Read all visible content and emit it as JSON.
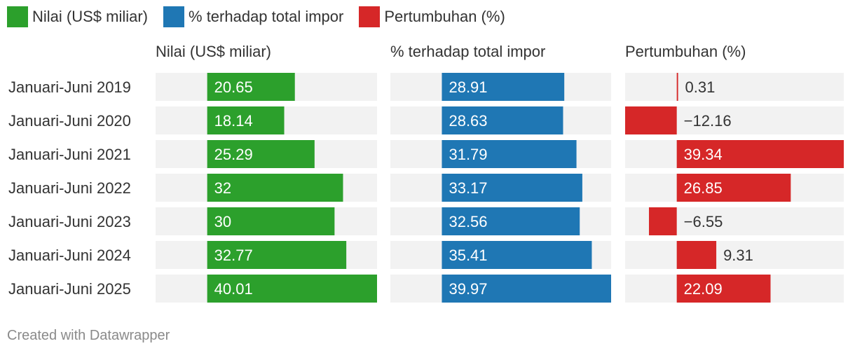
{
  "legend": [
    {
      "label": "Nilai (US$ miliar)",
      "color": "#2ca02c"
    },
    {
      "label": "% terhadap total impor",
      "color": "#1f77b4"
    },
    {
      "label": "Pertumbuhan (%)",
      "color": "#d62728"
    }
  ],
  "footer": {
    "credit": "Created with Datawrapper"
  },
  "chart_data": {
    "type": "bar",
    "orientation": "horizontal",
    "categories": [
      "Januari-Juni 2019",
      "Januari-Juni 2020",
      "Januari-Juni 2021",
      "Januari-Juni 2022",
      "Januari-Juni 2023",
      "Januari-Juni 2024",
      "Januari-Juni 2025"
    ],
    "series": [
      {
        "name": "Nilai (US$ miliar)",
        "color": "#2ca02c",
        "values": [
          20.65,
          18.14,
          25.29,
          32,
          30,
          32.77,
          40.01
        ],
        "labels": [
          "20.65",
          "18.14",
          "25.29",
          "32",
          "30",
          "32.77",
          "40.01"
        ],
        "xlim": [
          -12.16,
          40.01
        ]
      },
      {
        "name": "% terhadap total impor",
        "color": "#1f77b4",
        "values": [
          28.91,
          28.63,
          31.79,
          33.17,
          32.56,
          35.41,
          39.97
        ],
        "labels": [
          "28.91",
          "28.63",
          "31.79",
          "33.17",
          "32.56",
          "35.41",
          "39.97"
        ],
        "xlim": [
          -12.16,
          39.97
        ]
      },
      {
        "name": "Pertumbuhan (%)",
        "color": "#d62728",
        "values": [
          0.31,
          -12.16,
          39.34,
          26.85,
          -6.55,
          9.31,
          22.09
        ],
        "labels": [
          "0.31",
          "−12.16",
          "39.34",
          "26.85",
          "−6.55",
          "9.31",
          "22.09"
        ],
        "xlim": [
          -12.16,
          39.34
        ]
      }
    ],
    "grid": false,
    "legend_position": "top-left"
  }
}
